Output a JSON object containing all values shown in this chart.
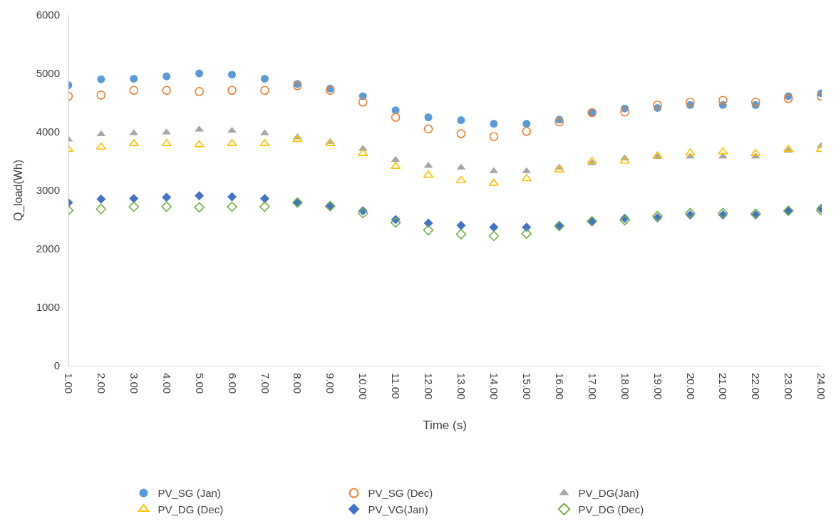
{
  "chart_data": {
    "type": "scatter",
    "xlabel": "Time (s)",
    "ylabel": "Q_load(Wh)",
    "categories": [
      "1.00",
      "2.00",
      "3.00",
      "4.00",
      "5.00",
      "6.00",
      "7.00",
      "8.00",
      "9.00",
      "10.00",
      "11.00",
      "12.00",
      "13.00",
      "14.00",
      "15.00",
      "16.00",
      "17.00",
      "18.00",
      "19.00",
      "20.00",
      "21.00",
      "22.00",
      "23.00",
      "24.00"
    ],
    "ylim": [
      0,
      6000
    ],
    "yticks": [
      0,
      1000,
      2000,
      3000,
      4000,
      5000,
      6000
    ],
    "grid": false,
    "legend": "bottom",
    "series": [
      {
        "name": "PV_SG (Jan)",
        "color": "#5b9bd5",
        "marker": "circle",
        "values": [
          4800,
          4900,
          4910,
          4950,
          5000,
          4980,
          4910,
          4820,
          4740,
          4610,
          4370,
          4250,
          4200,
          4140,
          4140,
          4210,
          4330,
          4400,
          4410,
          4460,
          4460,
          4460,
          4610,
          4660
        ]
      },
      {
        "name": "PV_SG (Dec)",
        "color": "#ed7d31",
        "marker": "circle",
        "values": [
          4610,
          4630,
          4710,
          4710,
          4690,
          4710,
          4710,
          4790,
          4710,
          4510,
          4250,
          4050,
          3970,
          3920,
          4010,
          4170,
          4330,
          4340,
          4460,
          4510,
          4540,
          4510,
          4570,
          4610
        ]
      },
      {
        "name": "PV_DG(Jan)",
        "color": "#a5a5a5",
        "marker": "triangle",
        "values": [
          3870,
          3960,
          3980,
          3990,
          4040,
          4020,
          3980,
          3910,
          3830,
          3710,
          3520,
          3420,
          3390,
          3330,
          3330,
          3390,
          3470,
          3550,
          3570,
          3580,
          3580,
          3580,
          3680,
          3760
        ]
      },
      {
        "name": "PV_DG (Dec)",
        "color": "#ffc000",
        "marker": "triangle",
        "values": [
          3700,
          3740,
          3800,
          3800,
          3780,
          3800,
          3800,
          3870,
          3800,
          3630,
          3410,
          3260,
          3170,
          3120,
          3200,
          3350,
          3500,
          3500,
          3590,
          3640,
          3660,
          3630,
          3700,
          3700
        ]
      },
      {
        "name": "PV_VG(Jan)",
        "color": "#4472c4",
        "marker": "diamond",
        "values": [
          2790,
          2850,
          2860,
          2880,
          2910,
          2890,
          2860,
          2800,
          2740,
          2650,
          2500,
          2440,
          2400,
          2370,
          2370,
          2400,
          2470,
          2520,
          2530,
          2580,
          2580,
          2580,
          2650,
          2690
        ]
      },
      {
        "name": "PV_DG (Dec)",
        "color": "#70ad47",
        "marker": "diamond",
        "values": [
          2660,
          2680,
          2720,
          2720,
          2710,
          2720,
          2720,
          2790,
          2730,
          2610,
          2450,
          2320,
          2250,
          2220,
          2260,
          2390,
          2470,
          2490,
          2560,
          2610,
          2610,
          2600,
          2650,
          2660
        ]
      }
    ]
  }
}
